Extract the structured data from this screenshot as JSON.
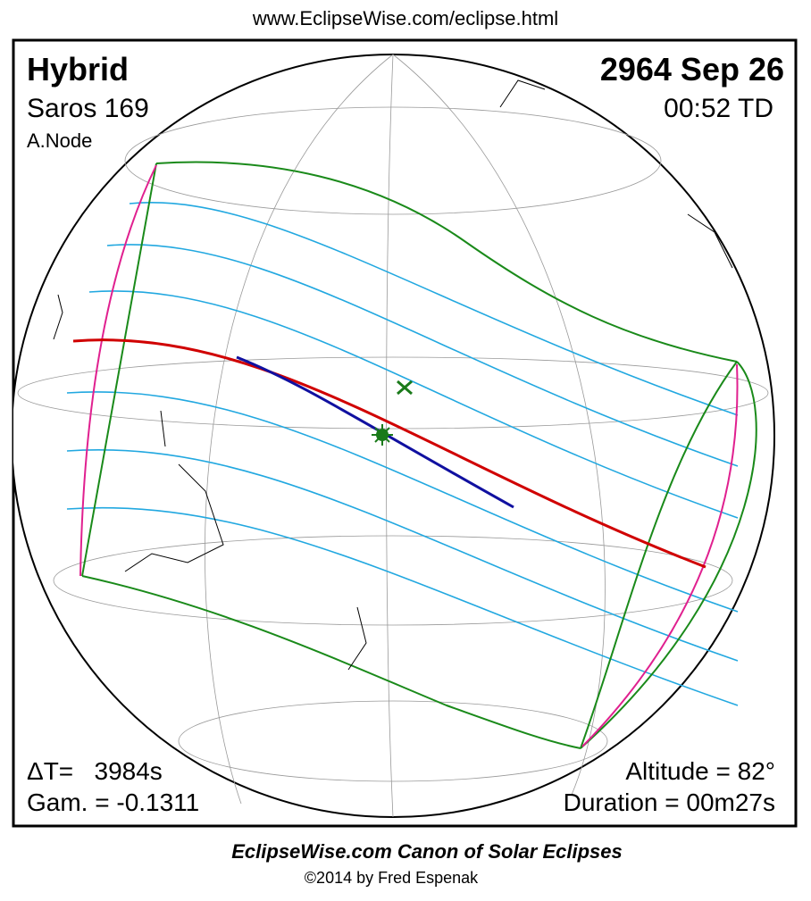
{
  "header": {
    "url": "www.EclipseWise.com/eclipse.html"
  },
  "top_left": {
    "type": "Hybrid",
    "saros": "Saros 169",
    "node": "A.Node"
  },
  "top_right": {
    "date": "2964 Sep 26",
    "time": "00:52 TD"
  },
  "bottom_left": {
    "delta_t": "ΔT=   3984s",
    "gamma": "Gam. = -0.1311"
  },
  "bottom_right": {
    "altitude": "Altitude = 82°",
    "duration": "Duration = 00m27s"
  },
  "footer": {
    "title": "EclipseWise.com Canon of Solar Eclipses",
    "credit": "©2014 by Fred Espenak"
  }
}
